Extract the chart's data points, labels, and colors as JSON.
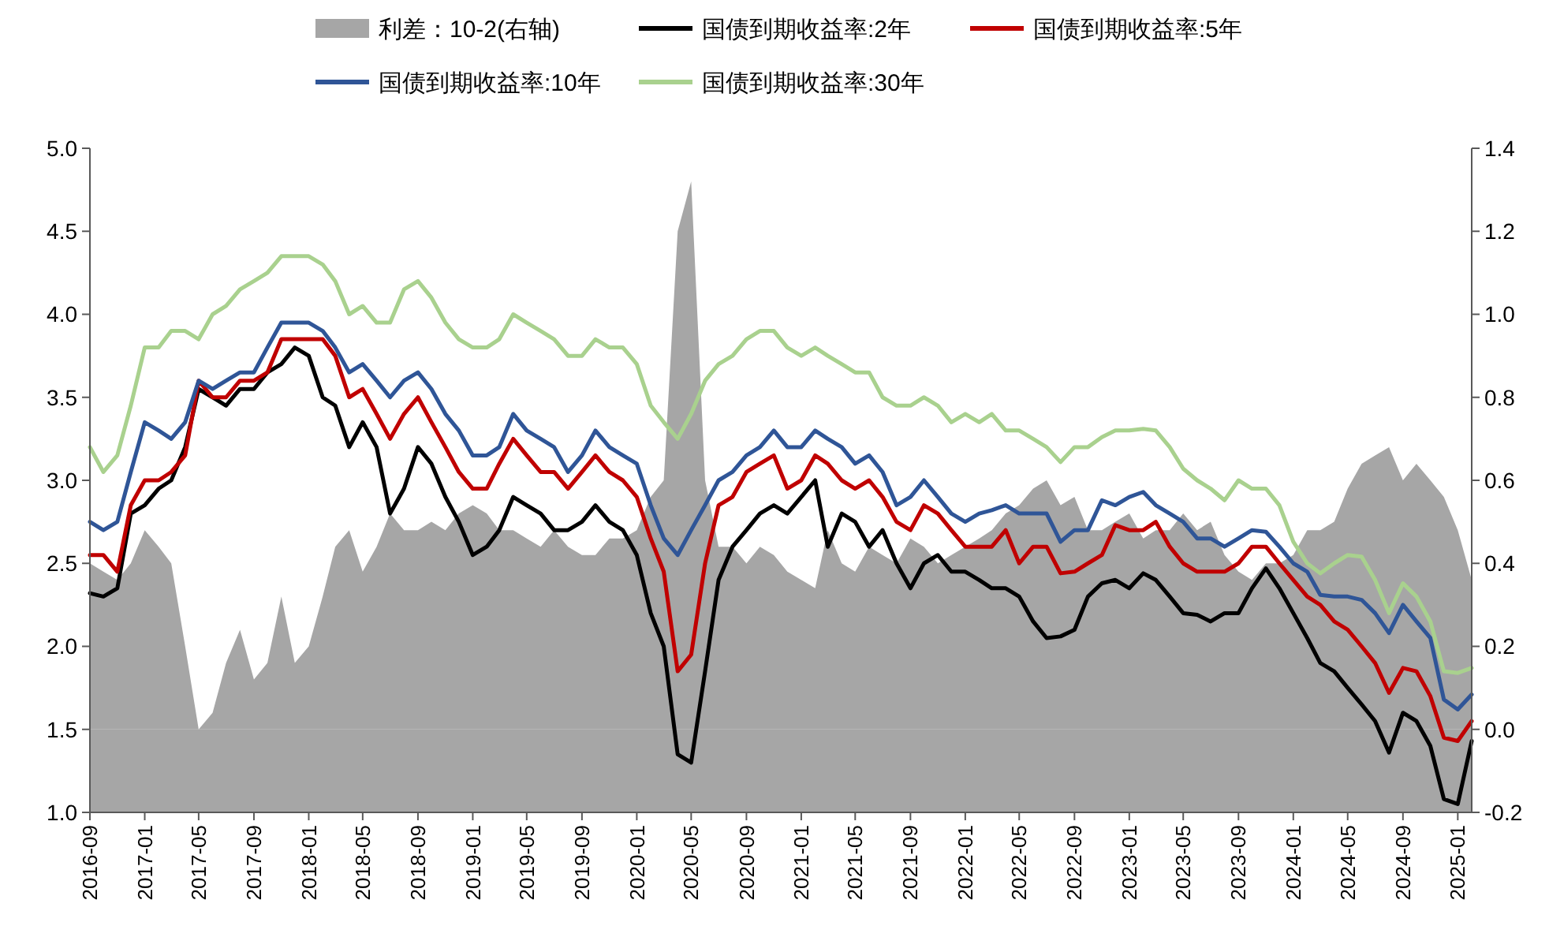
{
  "chart_data": {
    "type": "line",
    "legend": "top",
    "x": [
      "2016-09",
      "2016-10",
      "2016-11",
      "2016-12",
      "2017-01",
      "2017-02",
      "2017-03",
      "2017-04",
      "2017-05",
      "2017-06",
      "2017-07",
      "2017-08",
      "2017-09",
      "2017-10",
      "2017-11",
      "2017-12",
      "2018-01",
      "2018-02",
      "2018-03",
      "2018-04",
      "2018-05",
      "2018-06",
      "2018-07",
      "2018-08",
      "2018-09",
      "2018-10",
      "2018-11",
      "2018-12",
      "2019-01",
      "2019-02",
      "2019-03",
      "2019-04",
      "2019-05",
      "2019-06",
      "2019-07",
      "2019-08",
      "2019-09",
      "2019-10",
      "2019-11",
      "2019-12",
      "2020-01",
      "2020-02",
      "2020-03",
      "2020-04",
      "2020-05",
      "2020-06",
      "2020-07",
      "2020-08",
      "2020-09",
      "2020-10",
      "2020-11",
      "2020-12",
      "2021-01",
      "2021-02",
      "2021-03",
      "2021-04",
      "2021-05",
      "2021-06",
      "2021-07",
      "2021-08",
      "2021-09",
      "2021-10",
      "2021-11",
      "2021-12",
      "2022-01",
      "2022-02",
      "2022-03",
      "2022-04",
      "2022-05",
      "2022-06",
      "2022-07",
      "2022-08",
      "2022-09",
      "2022-10",
      "2022-11",
      "2022-12",
      "2023-01",
      "2023-02",
      "2023-03",
      "2023-04",
      "2023-05",
      "2023-06",
      "2023-07",
      "2023-08",
      "2023-09",
      "2023-10",
      "2023-11",
      "2023-12",
      "2024-01",
      "2024-02",
      "2024-03",
      "2024-04",
      "2024-05",
      "2024-06",
      "2024-07",
      "2024-08",
      "2024-09",
      "2024-10",
      "2024-11",
      "2024-12",
      "2025-01",
      "2025-02"
    ],
    "series": [
      {
        "name": "利差：10-2(右轴)",
        "type": "area",
        "axis": "y2",
        "color": "#a6a6a6",
        "values": [
          0.4,
          0.38,
          0.36,
          0.4,
          0.48,
          0.44,
          0.4,
          0.2,
          0.0,
          0.04,
          0.16,
          0.24,
          0.12,
          0.16,
          0.32,
          0.16,
          0.2,
          0.32,
          0.44,
          0.48,
          0.38,
          0.44,
          0.52,
          0.48,
          0.48,
          0.5,
          0.48,
          0.52,
          0.54,
          0.52,
          0.48,
          0.48,
          0.46,
          0.44,
          0.48,
          0.44,
          0.42,
          0.42,
          0.46,
          0.46,
          0.48,
          0.56,
          0.6,
          1.2,
          1.32,
          0.6,
          0.44,
          0.44,
          0.4,
          0.44,
          0.42,
          0.38,
          0.36,
          0.34,
          0.48,
          0.4,
          0.38,
          0.44,
          0.42,
          0.4,
          0.46,
          0.44,
          0.4,
          0.42,
          0.44,
          0.46,
          0.48,
          0.52,
          0.54,
          0.58,
          0.6,
          0.54,
          0.56,
          0.48,
          0.48,
          0.5,
          0.52,
          0.46,
          0.48,
          0.48,
          0.52,
          0.48,
          0.5,
          0.42,
          0.38,
          0.36,
          0.4,
          0.4,
          0.42,
          0.48,
          0.48,
          0.5,
          0.58,
          0.64,
          0.66,
          0.68,
          0.6,
          0.64,
          0.6,
          0.56,
          0.48,
          0.36
        ]
      },
      {
        "name": "国债到期收益率:2年",
        "color": "#000000",
        "values": [
          2.32,
          2.3,
          2.35,
          2.8,
          2.85,
          2.95,
          3.0,
          3.2,
          3.55,
          3.5,
          3.45,
          3.55,
          3.55,
          3.65,
          3.7,
          3.8,
          3.75,
          3.5,
          3.45,
          3.2,
          3.35,
          3.2,
          2.8,
          2.95,
          3.2,
          3.1,
          2.9,
          2.75,
          2.55,
          2.6,
          2.7,
          2.9,
          2.85,
          2.8,
          2.7,
          2.7,
          2.75,
          2.85,
          2.75,
          2.7,
          2.55,
          2.2,
          2.0,
          1.35,
          1.3,
          1.85,
          2.4,
          2.6,
          2.7,
          2.8,
          2.85,
          2.8,
          2.9,
          3.0,
          2.6,
          2.8,
          2.75,
          2.6,
          2.7,
          2.5,
          2.35,
          2.5,
          2.55,
          2.45,
          2.45,
          2.4,
          2.35,
          2.35,
          2.3,
          2.15,
          2.05,
          2.06,
          2.1,
          2.3,
          2.38,
          2.4,
          2.35,
          2.44,
          2.4,
          2.3,
          2.2,
          2.19,
          2.15,
          2.2,
          2.2,
          2.35,
          2.47,
          2.35,
          2.2,
          2.05,
          1.9,
          1.85,
          1.75,
          1.65,
          1.55,
          1.36,
          1.6,
          1.55,
          1.4,
          1.08,
          1.05,
          1.43
        ]
      },
      {
        "name": "国债到期收益率:5年",
        "color": "#c00000",
        "values": [
          2.55,
          2.55,
          2.45,
          2.85,
          3.0,
          3.0,
          3.05,
          3.15,
          3.6,
          3.5,
          3.5,
          3.6,
          3.6,
          3.65,
          3.85,
          3.85,
          3.85,
          3.85,
          3.75,
          3.5,
          3.55,
          3.4,
          3.25,
          3.4,
          3.5,
          3.35,
          3.2,
          3.05,
          2.95,
          2.95,
          3.1,
          3.25,
          3.15,
          3.05,
          3.05,
          2.95,
          3.05,
          3.15,
          3.05,
          3.0,
          2.9,
          2.65,
          2.45,
          1.85,
          1.95,
          2.5,
          2.85,
          2.9,
          3.05,
          3.1,
          3.15,
          2.95,
          3.0,
          3.15,
          3.1,
          3.0,
          2.95,
          3.0,
          2.9,
          2.75,
          2.7,
          2.85,
          2.8,
          2.7,
          2.6,
          2.6,
          2.6,
          2.7,
          2.5,
          2.6,
          2.6,
          2.44,
          2.45,
          2.5,
          2.55,
          2.73,
          2.7,
          2.7,
          2.75,
          2.6,
          2.5,
          2.45,
          2.45,
          2.45,
          2.5,
          2.6,
          2.6,
          2.5,
          2.4,
          2.3,
          2.25,
          2.15,
          2.1,
          2.0,
          1.9,
          1.72,
          1.87,
          1.85,
          1.7,
          1.45,
          1.43,
          1.55
        ]
      },
      {
        "name": "国债到期收益率:10年",
        "color": "#2f5597",
        "values": [
          2.75,
          2.7,
          2.75,
          3.05,
          3.35,
          3.3,
          3.25,
          3.35,
          3.6,
          3.55,
          3.6,
          3.65,
          3.65,
          3.8,
          3.95,
          3.95,
          3.95,
          3.9,
          3.8,
          3.65,
          3.7,
          3.6,
          3.5,
          3.6,
          3.65,
          3.55,
          3.4,
          3.3,
          3.15,
          3.15,
          3.2,
          3.4,
          3.3,
          3.25,
          3.2,
          3.05,
          3.15,
          3.3,
          3.2,
          3.15,
          3.1,
          2.85,
          2.65,
          2.55,
          2.7,
          2.85,
          3.0,
          3.05,
          3.15,
          3.2,
          3.3,
          3.2,
          3.2,
          3.3,
          3.25,
          3.2,
          3.1,
          3.15,
          3.05,
          2.85,
          2.9,
          3.0,
          2.9,
          2.8,
          2.75,
          2.8,
          2.82,
          2.85,
          2.8,
          2.8,
          2.8,
          2.63,
          2.7,
          2.7,
          2.88,
          2.85,
          2.9,
          2.93,
          2.85,
          2.8,
          2.75,
          2.65,
          2.65,
          2.6,
          2.65,
          2.7,
          2.69,
          2.6,
          2.5,
          2.45,
          2.31,
          2.3,
          2.3,
          2.28,
          2.2,
          2.08,
          2.25,
          2.15,
          2.05,
          1.68,
          1.62,
          1.71
        ]
      },
      {
        "name": "国债到期收益率:30年",
        "color": "#a9d18e",
        "values": [
          3.2,
          3.05,
          3.15,
          3.45,
          3.8,
          3.8,
          3.9,
          3.9,
          3.85,
          4.0,
          4.05,
          4.15,
          4.2,
          4.25,
          4.35,
          4.35,
          4.35,
          4.3,
          4.2,
          4.0,
          4.05,
          3.95,
          3.95,
          4.15,
          4.2,
          4.1,
          3.95,
          3.85,
          3.8,
          3.8,
          3.85,
          4.0,
          3.95,
          3.9,
          3.85,
          3.75,
          3.75,
          3.85,
          3.8,
          3.8,
          3.7,
          3.45,
          3.35,
          3.25,
          3.4,
          3.6,
          3.7,
          3.75,
          3.85,
          3.9,
          3.9,
          3.8,
          3.75,
          3.8,
          3.75,
          3.7,
          3.65,
          3.65,
          3.5,
          3.45,
          3.45,
          3.5,
          3.45,
          3.35,
          3.4,
          3.35,
          3.4,
          3.3,
          3.3,
          3.25,
          3.2,
          3.11,
          3.2,
          3.2,
          3.26,
          3.3,
          3.3,
          3.31,
          3.3,
          3.2,
          3.07,
          3.0,
          2.95,
          2.88,
          3.0,
          2.95,
          2.95,
          2.85,
          2.63,
          2.5,
          2.44,
          2.5,
          2.55,
          2.54,
          2.4,
          2.2,
          2.38,
          2.3,
          2.15,
          1.85,
          1.84,
          1.87
        ]
      }
    ],
    "xlim": [
      "2016-09",
      "2025-02"
    ],
    "xticks": [
      "2016-09",
      "2017-01",
      "2017-05",
      "2017-09",
      "2018-01",
      "2018-05",
      "2018-09",
      "2019-01",
      "2019-05",
      "2019-09",
      "2020-01",
      "2020-05",
      "2020-09",
      "2021-01",
      "2021-05",
      "2021-09",
      "2022-01",
      "2022-05",
      "2022-09",
      "2023-01",
      "2023-05",
      "2023-09",
      "2024-01",
      "2024-05",
      "2024-09",
      "2025-01"
    ],
    "ylim": [
      1,
      5
    ],
    "yticks": [
      {
        "value": 1,
        "label": "1.0"
      },
      1.5,
      {
        "value": 2,
        "label": "2.0"
      },
      2.5,
      {
        "value": 3,
        "label": "3.0"
      },
      3.5,
      {
        "value": 4,
        "label": "4.0"
      },
      4.5,
      {
        "value": 5,
        "label": "5.0"
      }
    ],
    "bands": [
      {
        "axis": "y2",
        "from": -0.2,
        "to": 0,
        "color": "#a6a6a6"
      }
    ],
    "y2lim": [
      -0.2,
      1.4
    ],
    "y2ticks": [
      -0.2,
      {
        "value": 0,
        "label": "0.0"
      },
      0.2,
      0.4,
      0.6,
      0.8,
      {
        "value": 1,
        "label": "1.0"
      },
      1.2,
      1.4
    ]
  }
}
